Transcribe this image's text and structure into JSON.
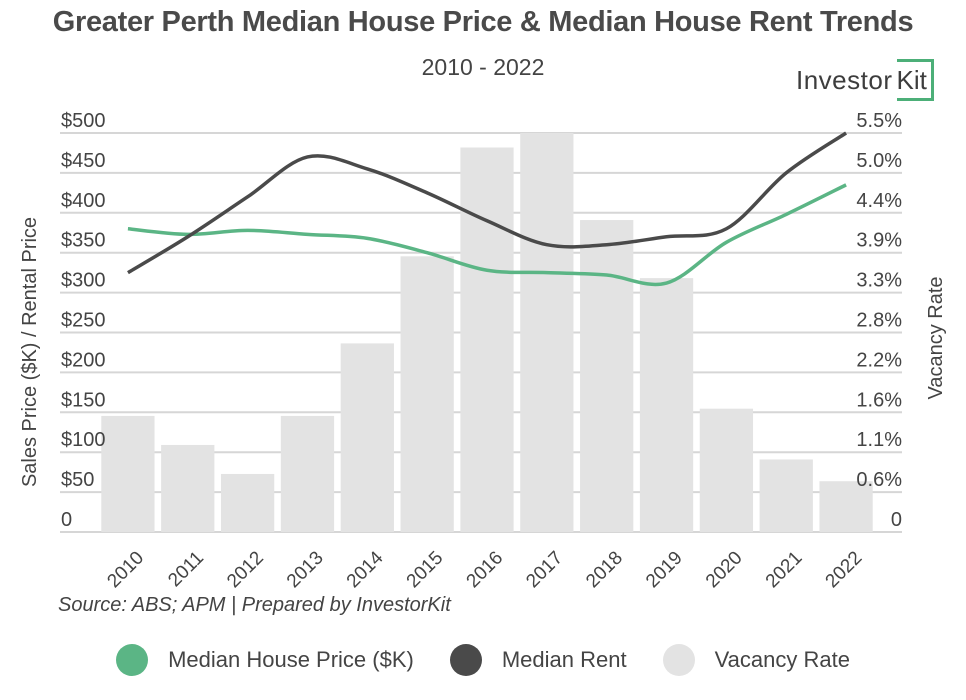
{
  "header": {
    "title": "Greater Perth Median House Price & Median House Rent Trends",
    "subtitle": "2010 - 2022",
    "logo_text": "Investor",
    "logo_kit": "Kit"
  },
  "source": "Source: ABS; APM | Prepared by InvestorKit",
  "colors": {
    "price": "#5bb585",
    "rent": "#4a4a4a",
    "vacancy": "#e3e3e3",
    "grid": "#d6d6d6",
    "logo_accent": "#4caf78"
  },
  "chart_data": {
    "type": "bar",
    "title": "Greater Perth Median House Price & Median House Rent Trends",
    "subtitle": "2010 - 2022",
    "categories": [
      "2010",
      "2011",
      "2012",
      "2013",
      "2014",
      "2015",
      "2016",
      "2017",
      "2018",
      "2019",
      "2020",
      "2021",
      "2022"
    ],
    "series": [
      {
        "name": "Median House Price ($K)",
        "type": "line",
        "axis": "left",
        "color": "#5bb585",
        "values": [
          380,
          373,
          378,
          373,
          368,
          350,
          328,
          325,
          322,
          312,
          363,
          398,
          435
        ]
      },
      {
        "name": "Median Rent",
        "type": "line",
        "axis": "left",
        "color": "#4a4a4a",
        "values": [
          325,
          370,
          420,
          470,
          455,
          425,
          390,
          360,
          360,
          370,
          380,
          450,
          500
        ]
      },
      {
        "name": "Vacancy Rate",
        "type": "bar",
        "axis": "right",
        "color": "#e3e3e3",
        "values": [
          1.6,
          1.2,
          0.8,
          1.6,
          2.6,
          3.8,
          5.3,
          5.5,
          4.3,
          3.5,
          1.7,
          1.0,
          0.7
        ]
      }
    ],
    "ylabel": "Sales Price ($K) / Rental Price",
    "y2label": "Vacancy Rate",
    "xlabel": "",
    "ylim": [
      0,
      500
    ],
    "y2lim": [
      0,
      5.5
    ],
    "yticks": [
      "0",
      "$50",
      "$100",
      "$150",
      "$200",
      "$250",
      "$300",
      "$350",
      "$400",
      "$450",
      "$500"
    ],
    "y2ticks": [
      "0",
      "0.6%",
      "1.1%",
      "1.6%",
      "2.2%",
      "2.8%",
      "3.3%",
      "3.9%",
      "4.4%",
      "5.0%",
      "5.5%"
    ],
    "grid": true,
    "legend_position": "bottom",
    "legend": [
      "Median House Price ($K)",
      "Median Rent",
      "Vacancy Rate"
    ]
  }
}
